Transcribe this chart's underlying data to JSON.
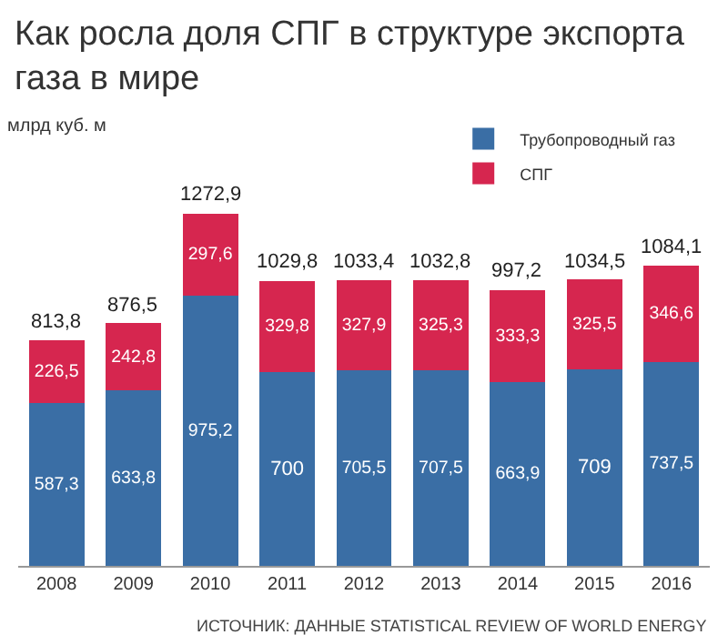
{
  "chart_data": {
    "type": "bar",
    "stacked": true,
    "title": "Как росла доля СПГ в структуре экспорта газа в мире",
    "ylabel": "млрд куб. м",
    "categories": [
      "2008",
      "2009",
      "2010",
      "2011",
      "2012",
      "2013",
      "2014",
      "2015",
      "2016"
    ],
    "series": [
      {
        "name": "Трубопроводный газ",
        "color": "#3a6ea5",
        "values": [
          587.3,
          633.8,
          975.2,
          700,
          705.5,
          707.5,
          663.9,
          709,
          737.5
        ],
        "value_labels": [
          "587,3",
          "633,8",
          "975,2",
          "700",
          "705,5",
          "707,5",
          "663,9",
          "709",
          "737,5"
        ]
      },
      {
        "name": "СПГ",
        "color": "#d6264f",
        "values": [
          226.5,
          242.8,
          297.6,
          329.8,
          327.9,
          325.3,
          333.3,
          325.5,
          346.6
        ],
        "value_labels": [
          "226,5",
          "242,8",
          "297,6",
          "329,8",
          "327,9",
          "325,3",
          "333,3",
          "325,5",
          "346,6"
        ]
      }
    ],
    "totals": [
      "813,8",
      "876,5",
      "1272,9",
      "1029,8",
      "1033,4",
      "1032,8",
      "997,2",
      "1034,5",
      "1084,1"
    ],
    "legend": "top right",
    "annotations": [
      "ИСТОЧНИК: ДАННЫЕ STATISTICAL REVIEW OF WORLD ENERGY"
    ]
  }
}
